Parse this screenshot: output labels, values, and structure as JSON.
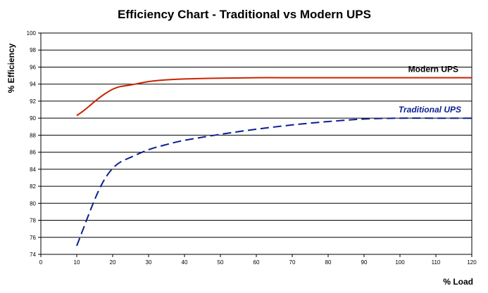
{
  "chart_data": {
    "type": "line",
    "title": "Efficiency Chart - Traditional vs Modern UPS",
    "xlabel": "% Load",
    "ylabel": "% Efficiency",
    "xlim": [
      0,
      120
    ],
    "ylim": [
      74,
      100
    ],
    "x_ticks": [
      0,
      10,
      20,
      30,
      40,
      50,
      60,
      70,
      80,
      90,
      100,
      110,
      120
    ],
    "y_ticks": [
      74,
      76,
      78,
      80,
      82,
      84,
      86,
      88,
      90,
      92,
      94,
      96,
      98,
      100
    ],
    "grid": "horizontal",
    "series": [
      {
        "name": "Modern UPS",
        "color": "#cc2200",
        "dash": "solid",
        "x": [
          10,
          12,
          14,
          16,
          18,
          20,
          22,
          25,
          30,
          35,
          40,
          50,
          60,
          70,
          80,
          90,
          100,
          110,
          120
        ],
        "y": [
          90.3,
          90.9,
          91.6,
          92.3,
          92.9,
          93.4,
          93.7,
          93.9,
          94.3,
          94.5,
          94.6,
          94.7,
          94.75,
          94.75,
          94.75,
          94.75,
          94.75,
          94.75,
          94.75
        ]
      },
      {
        "name": "Traditional UPS",
        "color": "#0a1f8f",
        "dash": "dashed",
        "x": [
          10,
          12,
          14,
          16,
          18,
          20,
          22,
          25,
          30,
          35,
          40,
          50,
          60,
          70,
          80,
          90,
          100,
          110,
          120
        ],
        "y": [
          75.0,
          77.2,
          79.4,
          81.4,
          83.0,
          84.1,
          84.8,
          85.4,
          86.3,
          86.9,
          87.4,
          88.1,
          88.7,
          89.2,
          89.6,
          89.9,
          90.0,
          90.0,
          90.0
        ]
      }
    ]
  }
}
